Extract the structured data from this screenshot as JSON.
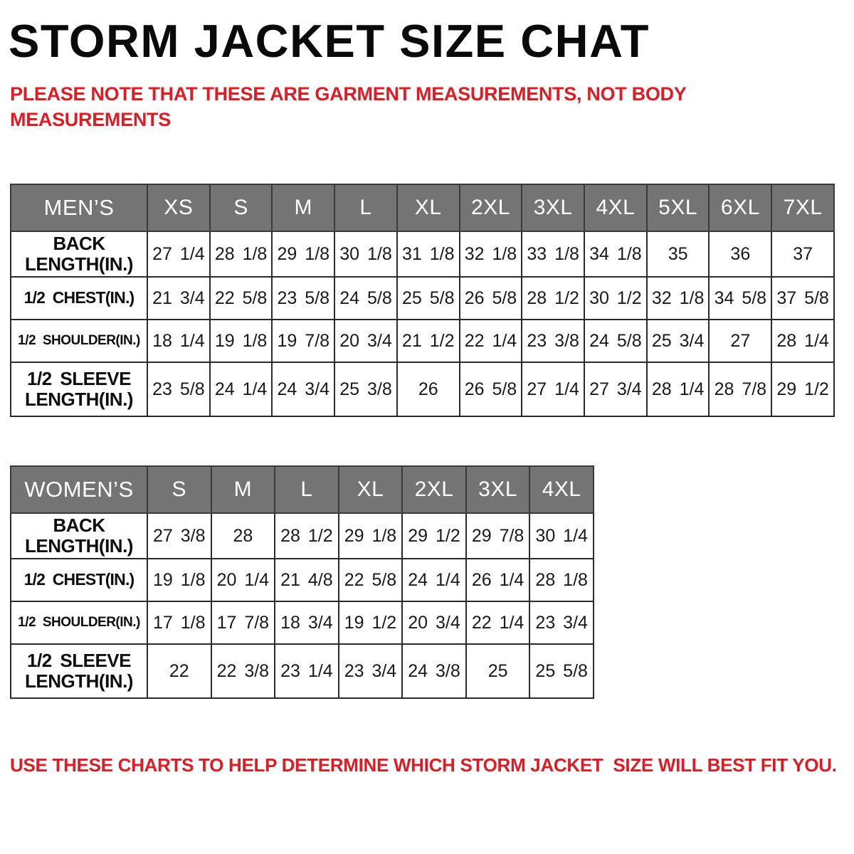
{
  "title": "STORM JACKET SIZE CHAT",
  "note_top": "PLEASE NOTE THAT THESE ARE GARMENT MEASUREMENTS, NOT BODY MEASUREMENTS",
  "note_bottom": "USE THESE CHARTS TO HELP DETERMINE WHICH STORM JACKET  SIZE WILL BEST FIT YOU.",
  "colors": {
    "accent_red": "#df1b23",
    "header_bg": "#747474",
    "header_text": "#ffffff",
    "border": "#2b2b2b"
  },
  "chart_data": [
    {
      "type": "table",
      "title": "MEN’S",
      "columns": [
        "XS",
        "S",
        "M",
        "L",
        "XL",
        "2XL",
        "3XL",
        "4XL",
        "5XL",
        "6XL",
        "7XL"
      ],
      "rows": [
        {
          "label": "BACK\nLENGTH(IN.)",
          "values": [
            "27 1/4",
            "28 1/8",
            "29 1/8",
            "30 1/8",
            "31 1/8",
            "32 1/8",
            "33 1/8",
            "34 1/8",
            "35",
            "36",
            "37"
          ]
        },
        {
          "label": "1/2 CHEST(IN.)",
          "values": [
            "21 3/4",
            "22 5/8",
            "23 5/8",
            "24 5/8",
            "25 5/8",
            "26 5/8",
            "28 1/2",
            "30 1/2",
            "32 1/8",
            "34 5/8",
            "37 5/8"
          ]
        },
        {
          "label": "1/2 SHOULDER(IN.)",
          "values": [
            "18 1/4",
            "19 1/8",
            "19 7/8",
            "20 3/4",
            "21 1/2",
            "22 1/4",
            "23 3/8",
            "24 5/8",
            "25 3/4",
            "27",
            "28 1/4"
          ]
        },
        {
          "label": "1/2 SLEEVE\nLENGTH(IN.)",
          "values": [
            "23 5/8",
            "24 1/4",
            "24 3/4",
            "25 3/8",
            "26",
            "26 5/8",
            "27 1/4",
            "27 3/4",
            "28 1/4",
            "28 7/8",
            "29 1/2"
          ]
        }
      ]
    },
    {
      "type": "table",
      "title": "WOMEN’S",
      "columns": [
        "S",
        "M",
        "L",
        "XL",
        "2XL",
        "3XL",
        "4XL"
      ],
      "rows": [
        {
          "label": "BACK\nLENGTH(IN.)",
          "values": [
            "27 3/8",
            "28",
            "28 1/2",
            "29 1/8",
            "29 1/2",
            "29 7/8",
            "30 1/4"
          ]
        },
        {
          "label": "1/2 CHEST(IN.)",
          "values": [
            "19 1/8",
            "20 1/4",
            "21 4/8",
            "22 5/8",
            "24 1/4",
            "26 1/4",
            "28 1/8"
          ]
        },
        {
          "label": "1/2 SHOULDER(IN.)",
          "values": [
            "17 1/8",
            "17 7/8",
            "18 3/4",
            "19 1/2",
            "20 3/4",
            "22 1/4",
            "23 3/4"
          ]
        },
        {
          "label": "1/2 SLEEVE\nLENGTH(IN.)",
          "values": [
            "22",
            "22 3/8",
            "23 1/4",
            "23 3/4",
            "24 3/8",
            "25",
            "25 5/8"
          ]
        }
      ]
    }
  ]
}
